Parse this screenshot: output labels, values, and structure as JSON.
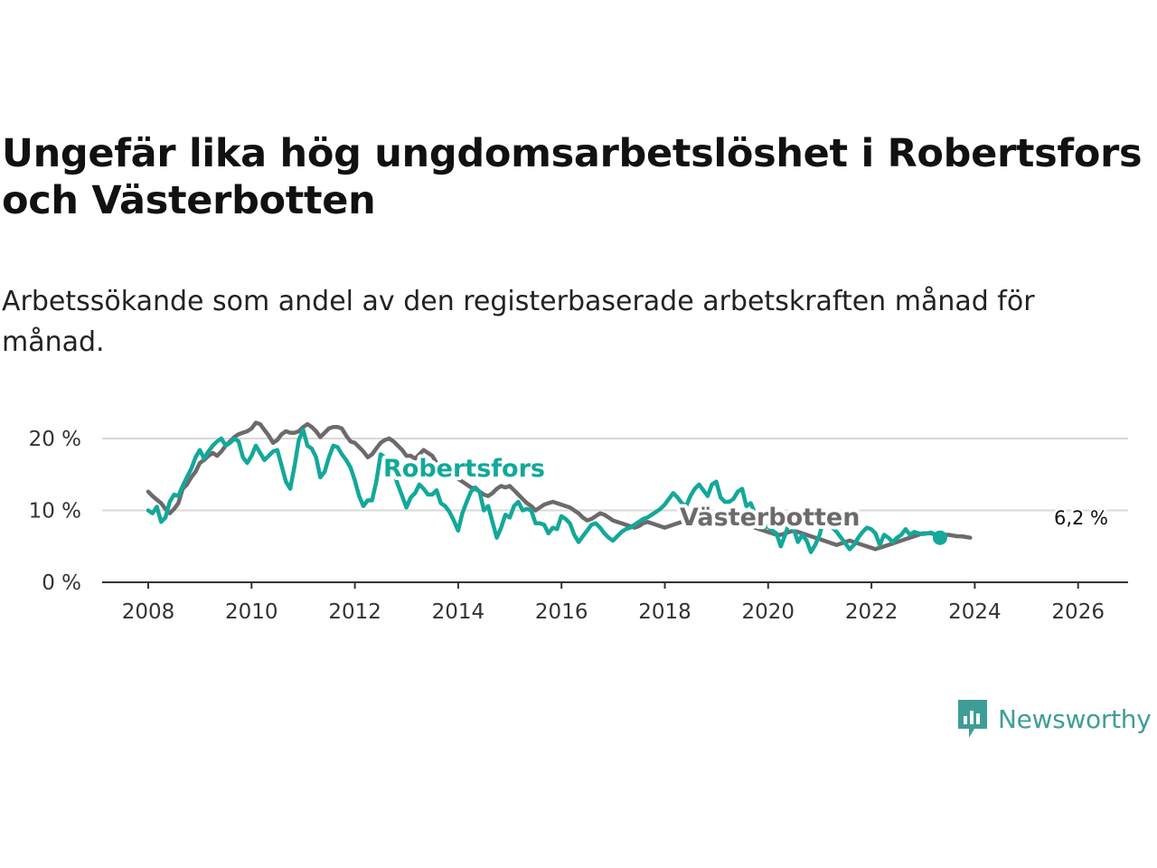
{
  "title": "Ungefär lika hög ungdomsarbetslöshet i Robertsfors och Västerbotten",
  "subtitle": "Arbetssökande som andel av den registerbaserade arbetskraften månad för månad.",
  "brand": {
    "name": "Newsworthy",
    "color": "#3e9e97",
    "icon": "bar-chart-speech-bubble-icon"
  },
  "chart_data": {
    "type": "line",
    "title": "Ungefär lika hög ungdomsarbetslöshet i Robertsfors och Västerbotten",
    "xlabel": "",
    "ylabel": "",
    "xlim": [
      2007.2,
      2026.95
    ],
    "ylim": [
      0,
      22
    ],
    "y_ticks": [
      0,
      10,
      20
    ],
    "y_tick_labels": [
      "0 %",
      "10 %",
      "20 %"
    ],
    "x_ticks": [
      2008,
      2010,
      2012,
      2014,
      2016,
      2018,
      2020,
      2022,
      2024,
      2026
    ],
    "x_tick_labels": [
      "2008",
      "2010",
      "2012",
      "2014",
      "2016",
      "2018",
      "2020",
      "2022",
      "2024",
      "2026"
    ],
    "grid": "horizontal",
    "x_start": 2008.0,
    "x_step": 0.0833,
    "series": [
      {
        "name": "Västerbotten",
        "color": "#6d6a6b",
        "label": "Västerbotten",
        "values": [
          12.6,
          12.0,
          11.5,
          11.0,
          10.2,
          9.6,
          10.2,
          11.0,
          13.0,
          13.6,
          14.6,
          15.4,
          16.6,
          17.0,
          17.6,
          18.0,
          17.6,
          18.2,
          19.0,
          19.6,
          20.2,
          20.6,
          20.8,
          21.0,
          21.4,
          22.2,
          22.0,
          21.2,
          20.4,
          19.4,
          19.8,
          20.6,
          21.0,
          20.8,
          20.8,
          21.0,
          21.6,
          22.0,
          21.6,
          21.0,
          20.2,
          20.8,
          21.4,
          21.6,
          21.6,
          21.4,
          20.4,
          19.6,
          19.4,
          18.8,
          18.2,
          17.4,
          17.8,
          18.6,
          19.4,
          19.8,
          20.0,
          19.6,
          19.0,
          18.4,
          17.6,
          17.6,
          17.2,
          17.8,
          18.4,
          18.0,
          17.6,
          16.6,
          16.0,
          15.4,
          15.0,
          14.8,
          14.4,
          14.0,
          13.6,
          13.2,
          13.0,
          12.6,
          12.2,
          12.0,
          12.4,
          13.0,
          13.4,
          13.2,
          13.4,
          12.8,
          12.2,
          11.6,
          11.0,
          10.6,
          10.0,
          10.4,
          10.8,
          11.0,
          11.2,
          11.0,
          10.8,
          10.6,
          10.4,
          10.0,
          9.6,
          9.0,
          8.6,
          8.8,
          9.2,
          9.6,
          9.4,
          9.0,
          8.6,
          8.4,
          8.2,
          8.0,
          7.8,
          7.6,
          7.8,
          8.2,
          8.4,
          8.2,
          8.0,
          7.8,
          7.6,
          7.8,
          8.0,
          8.2,
          8.4,
          8.6,
          8.6,
          8.4,
          8.2,
          8.0,
          7.8,
          8.0,
          8.2,
          8.4,
          8.6,
          8.8,
          8.6,
          8.4,
          8.2,
          8.0,
          7.8,
          7.6,
          7.4,
          7.2,
          7.0,
          6.8,
          6.6,
          6.6,
          6.8,
          7.0,
          7.2,
          7.0,
          6.8,
          6.6,
          6.4,
          6.2,
          6.0,
          5.8,
          5.6,
          5.4,
          5.2,
          5.4,
          5.6,
          5.8,
          5.6,
          5.4,
          5.2,
          5.0,
          4.8,
          4.6,
          4.8,
          5.0,
          5.2,
          5.4,
          5.6,
          5.8,
          6.0,
          6.2,
          6.4,
          6.6,
          6.8,
          6.8,
          6.8,
          6.6,
          6.6,
          6.6,
          6.6,
          6.5,
          6.4,
          6.4,
          6.3,
          6.2
        ]
      },
      {
        "name": "Robertsfors",
        "color": "#13a89a",
        "label": "Robertsfors",
        "values": [
          10.0,
          9.6,
          10.5,
          8.4,
          9.0,
          11.2,
          12.2,
          12.0,
          13.4,
          14.6,
          15.8,
          17.4,
          18.4,
          17.2,
          18.2,
          19.0,
          19.6,
          20.0,
          19.0,
          19.4,
          20.0,
          19.6,
          17.4,
          16.6,
          17.6,
          19.0,
          18.0,
          17.0,
          17.6,
          18.2,
          18.4,
          16.2,
          14.0,
          13.0,
          16.2,
          19.8,
          21.2,
          19.0,
          18.6,
          17.4,
          14.6,
          15.4,
          17.4,
          19.0,
          18.8,
          17.8,
          17.0,
          16.0,
          14.2,
          12.0,
          10.6,
          11.4,
          11.4,
          14.0,
          17.8,
          17.4,
          16.8,
          15.4,
          13.6,
          12.0,
          10.4,
          11.8,
          12.4,
          13.6,
          13.0,
          12.2,
          12.2,
          12.8,
          11.0,
          10.6,
          9.8,
          8.6,
          7.2,
          9.6,
          11.2,
          12.6,
          13.2,
          12.6,
          10.0,
          10.6,
          8.4,
          6.2,
          7.6,
          9.4,
          9.0,
          10.6,
          11.2,
          10.0,
          10.2,
          10.0,
          8.2,
          8.2,
          8.0,
          6.8,
          7.6,
          7.4,
          9.2,
          8.8,
          8.2,
          6.6,
          5.6,
          6.4,
          7.2,
          8.0,
          8.2,
          7.6,
          6.8,
          6.2,
          5.8,
          6.4,
          7.0,
          7.4,
          7.6,
          8.0,
          8.4,
          8.8,
          9.0,
          9.4,
          9.8,
          10.2,
          10.8,
          11.6,
          12.4,
          11.8,
          11.0,
          10.6,
          12.0,
          13.0,
          13.6,
          12.8,
          12.0,
          13.6,
          14.0,
          11.8,
          11.2,
          11.2,
          11.6,
          12.6,
          13.0,
          10.6,
          11.0,
          9.6,
          8.0,
          7.6,
          7.8,
          7.2,
          6.8,
          5.0,
          6.6,
          8.4,
          7.4,
          5.6,
          6.6,
          5.8,
          4.2,
          5.2,
          6.6,
          8.8,
          9.0,
          7.6,
          7.0,
          6.2,
          5.4,
          4.6,
          5.2,
          6.2,
          7.0,
          7.6,
          7.4,
          6.8,
          5.2,
          6.6,
          6.2,
          5.6,
          6.2,
          6.6,
          7.4,
          6.6,
          7.0,
          6.8,
          6.7,
          6.8,
          6.9,
          6.6,
          6.2
        ]
      }
    ],
    "end_label": "6,2 %"
  }
}
